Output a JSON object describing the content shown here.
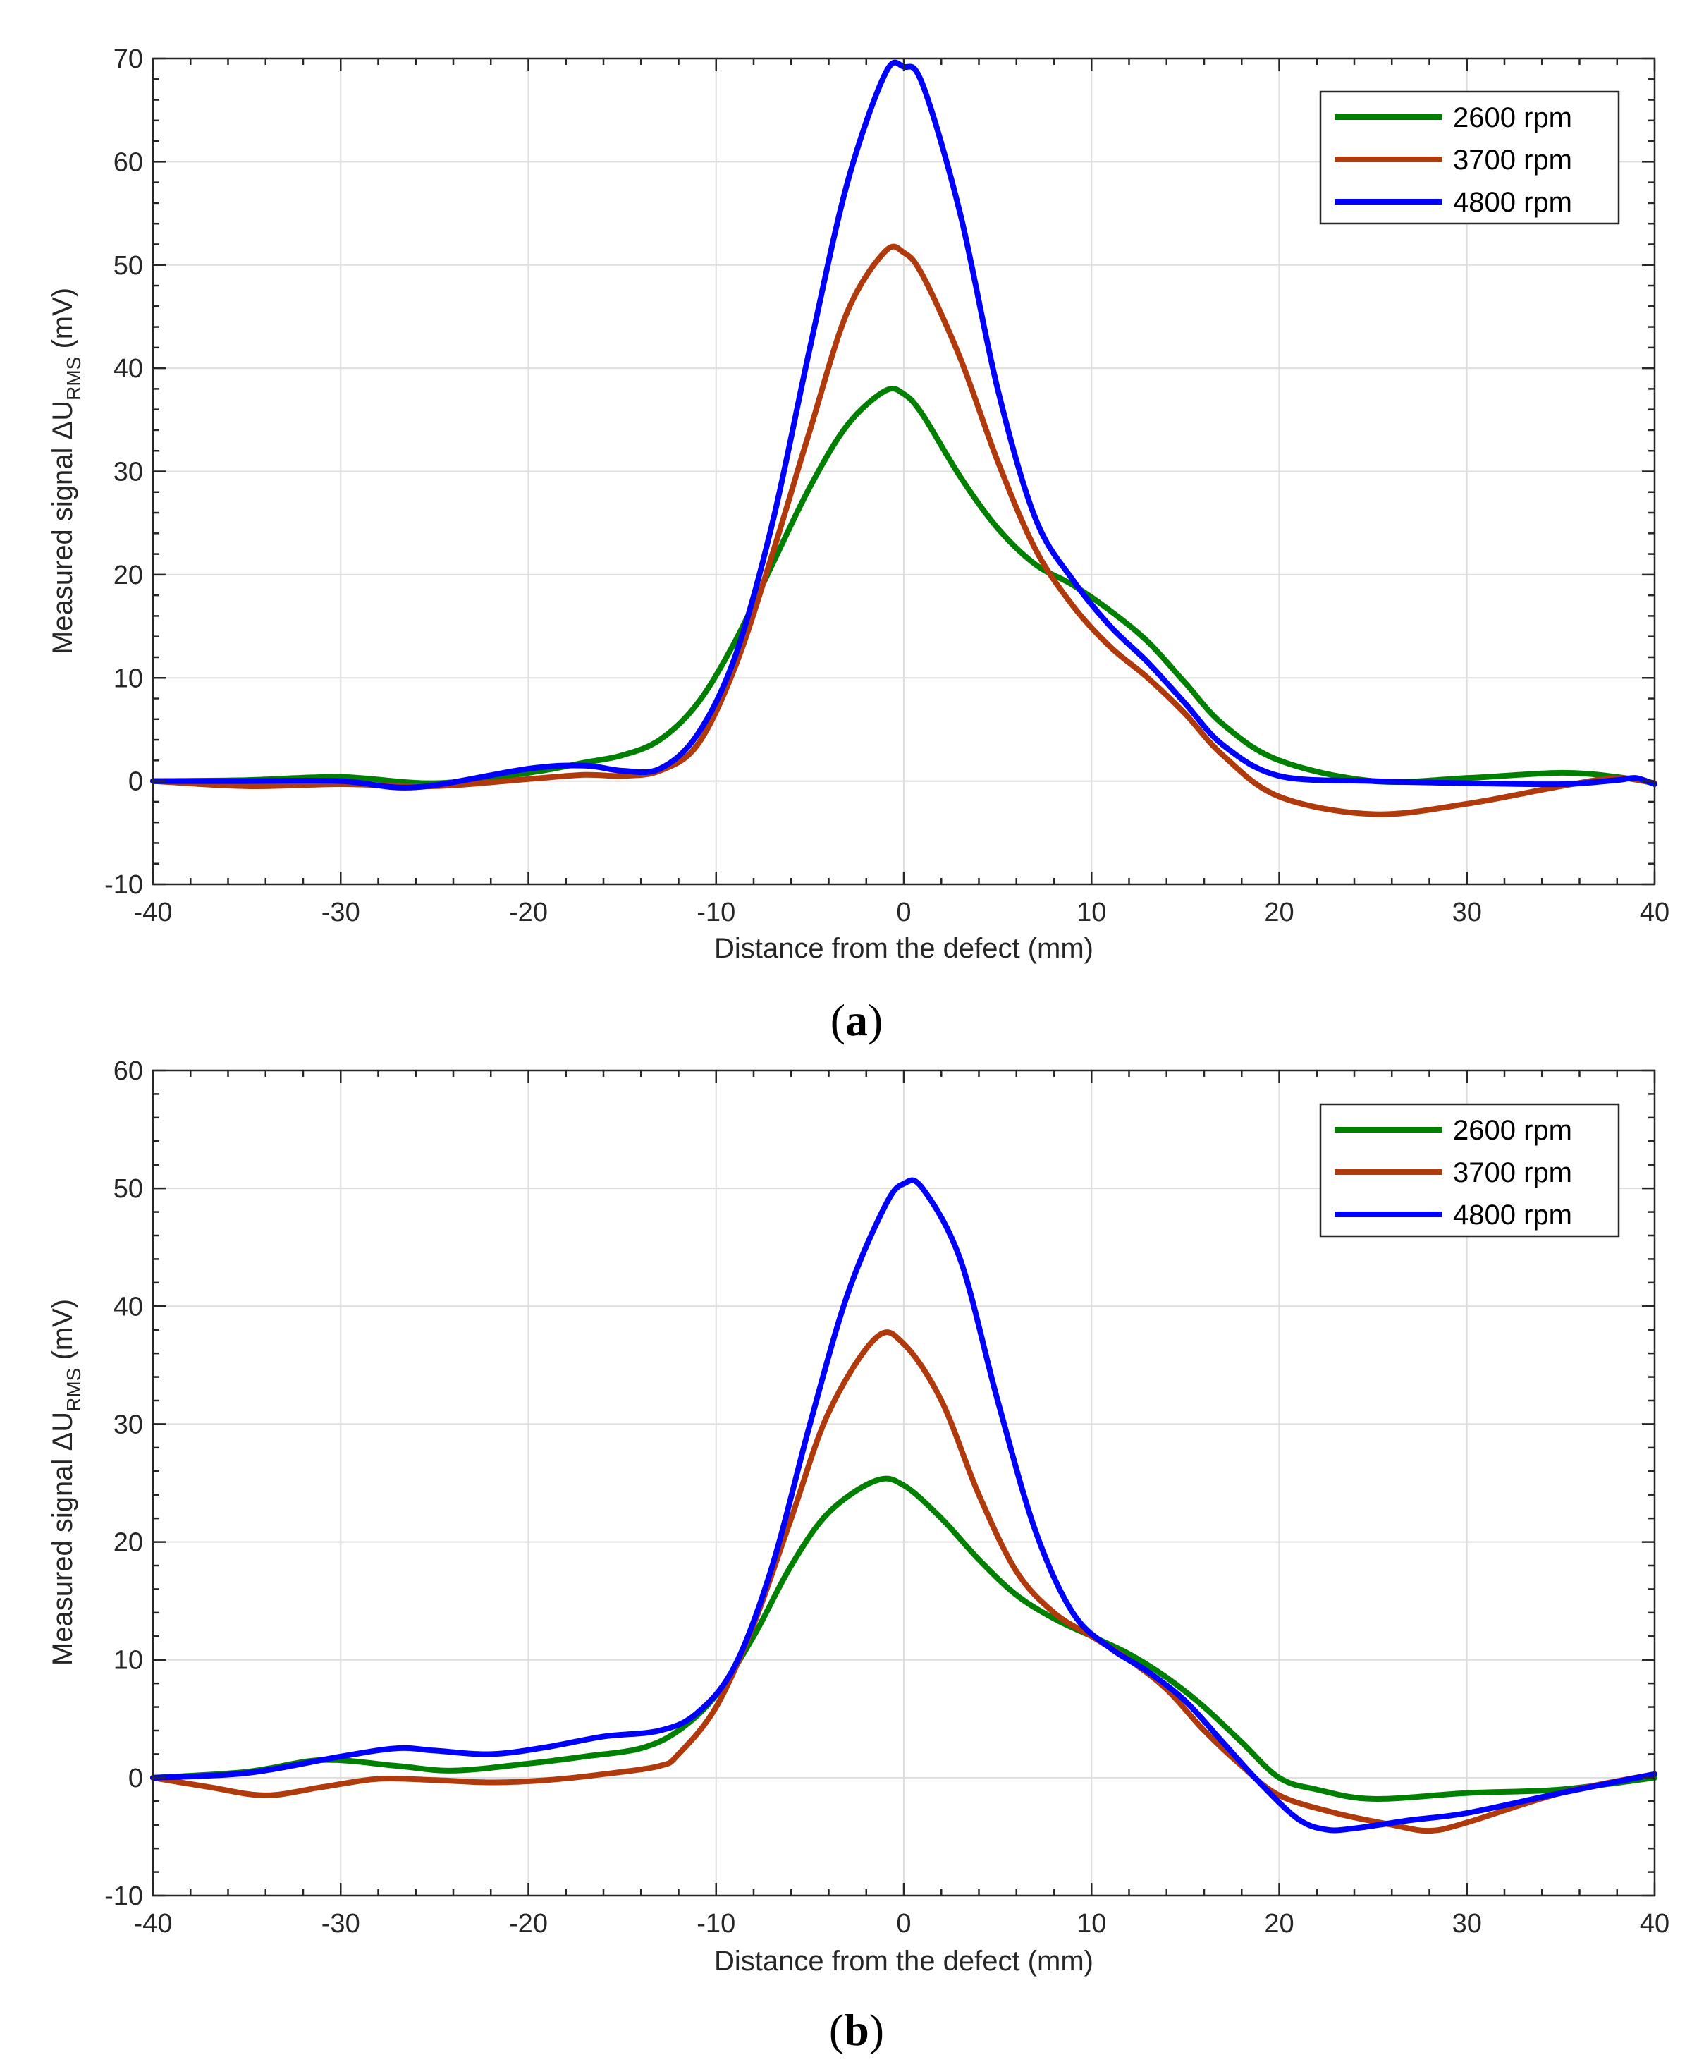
{
  "chart_data": [
    {
      "type": "line",
      "panel": "(a)",
      "panel_letter": "a",
      "xlabel": "Distance from the defect (mm)",
      "ylabel": "Measured signal ΔU",
      "ylabel_sub": "RMS",
      "ylabel_unit": " (mV)",
      "xlim": [
        -40,
        40
      ],
      "ylim": [
        -10,
        70
      ],
      "xticks": [
        -40,
        -30,
        -20,
        -10,
        0,
        10,
        20,
        30,
        40
      ],
      "yticks": [
        -10,
        0,
        10,
        20,
        30,
        40,
        50,
        60,
        70
      ],
      "grid": true,
      "legend_position": "top-right",
      "series": [
        {
          "name": "2600 rpm",
          "color": "#008000",
          "x": [
            -40,
            -35,
            -30,
            -25,
            -20,
            -17,
            -15,
            -13,
            -11,
            -9,
            -7,
            -5,
            -3,
            -1,
            0,
            1,
            3,
            5,
            7,
            9,
            11,
            13,
            15,
            17,
            20,
            25,
            30,
            35,
            38,
            40
          ],
          "y": [
            0,
            0.1,
            0.4,
            -0.2,
            0.8,
            1.8,
            2.5,
            4,
            7.5,
            13.5,
            21,
            28.5,
            34.5,
            37.8,
            37.5,
            35.5,
            29.5,
            24.5,
            21,
            19,
            16.5,
            13.5,
            9.5,
            5.5,
            2,
            0,
            0.3,
            0.8,
            0.4,
            -0.2
          ]
        },
        {
          "name": "3700 rpm",
          "color": "#B03A0C",
          "x": [
            -40,
            -35,
            -30,
            -25,
            -20,
            -17,
            -15,
            -13,
            -11,
            -9,
            -7,
            -5,
            -3,
            -1,
            0,
            1,
            3,
            5,
            7,
            9,
            11,
            13,
            15,
            17,
            20,
            25,
            30,
            35,
            38,
            40
          ],
          "y": [
            0,
            -0.5,
            -0.3,
            -0.5,
            0.2,
            0.6,
            0.5,
            1,
            3.5,
            11,
            22,
            34,
            45.5,
            51.3,
            51.2,
            49,
            41,
            31,
            22.5,
            17,
            13,
            10,
            6.5,
            2.5,
            -1.5,
            -3.2,
            -2.2,
            -0.5,
            0.3,
            -0.2
          ]
        },
        {
          "name": "4800 rpm",
          "color": "#0000FF",
          "x": [
            -40,
            -35,
            -30,
            -26,
            -20,
            -17,
            -15,
            -13,
            -11,
            -9,
            -7,
            -5,
            -3,
            -1,
            0,
            1,
            3,
            5,
            7,
            9,
            11,
            13,
            15,
            17,
            20,
            25,
            30,
            35,
            38,
            39,
            40
          ],
          "y": [
            0,
            0,
            0,
            -0.6,
            1.2,
            1.5,
            1,
            1.2,
            4.5,
            12,
            25,
            42,
            58,
            68.5,
            69.2,
            67.5,
            55,
            38,
            25.5,
            19.5,
            15,
            11.5,
            7.5,
            3.5,
            0.5,
            0,
            -0.2,
            -0.3,
            0.1,
            0.3,
            -0.3
          ]
        }
      ]
    },
    {
      "type": "line",
      "panel": "(b)",
      "panel_letter": "b",
      "xlabel": "Distance from the defect (mm)",
      "ylabel": "Measured signal ΔU",
      "ylabel_sub": "RMS",
      "ylabel_unit": " (mV)",
      "xlim": [
        -40,
        40
      ],
      "ylim": [
        -10,
        60
      ],
      "xticks": [
        -40,
        -30,
        -20,
        -10,
        0,
        10,
        20,
        30,
        40
      ],
      "yticks": [
        -10,
        0,
        10,
        20,
        30,
        40,
        50,
        60
      ],
      "grid": true,
      "legend_position": "top-right",
      "series": [
        {
          "name": "2600 rpm",
          "color": "#008000",
          "x": [
            -40,
            -35,
            -31,
            -27,
            -24,
            -20,
            -17,
            -14,
            -12,
            -10,
            -8,
            -6,
            -4,
            -1.5,
            0,
            2,
            4,
            6,
            8,
            10,
            12,
            14,
            16,
            18,
            20,
            22,
            25,
            30,
            35,
            40
          ],
          "y": [
            0,
            0.5,
            1.5,
            1,
            0.6,
            1.2,
            1.8,
            2.5,
            4,
            7,
            12,
            18,
            22.5,
            25.2,
            24.8,
            22,
            18.5,
            15.5,
            13.5,
            12,
            10.5,
            8.5,
            6,
            3,
            0,
            -1,
            -1.8,
            -1.3,
            -1,
            0
          ]
        },
        {
          "name": "3700 rpm",
          "color": "#B03A0C",
          "x": [
            -40,
            -37,
            -34,
            -31,
            -28,
            -25,
            -22,
            -19,
            -16,
            -13,
            -12,
            -10,
            -8,
            -6,
            -4,
            -1.5,
            0,
            2,
            4,
            6,
            8,
            10,
            12,
            14,
            16,
            18,
            20,
            23,
            26,
            28,
            30,
            35,
            40
          ],
          "y": [
            0,
            -0.8,
            -1.5,
            -0.8,
            -0.1,
            -0.2,
            -0.4,
            -0.2,
            0.3,
            1,
            2,
            6,
            13,
            22,
            31,
            37.3,
            36.8,
            32,
            24,
            17.5,
            14,
            12,
            10,
            7.5,
            4,
            1,
            -1.5,
            -3,
            -4,
            -4.5,
            -3.8,
            -1.3,
            0.3
          ]
        },
        {
          "name": "4800 rpm",
          "color": "#0000FF",
          "x": [
            -40,
            -35,
            -30,
            -27,
            -25,
            -22,
            -19,
            -16,
            -13,
            -11,
            -9,
            -7,
            -5,
            -3,
            -1,
            0,
            1,
            3,
            5,
            7,
            9,
            11,
            13,
            15,
            17,
            19,
            21,
            22.5,
            24,
            27,
            30,
            35,
            40
          ],
          "y": [
            0,
            0.4,
            1.8,
            2.5,
            2.3,
            2,
            2.6,
            3.5,
            4,
            5.5,
            9.5,
            18,
            30,
            41,
            48.5,
            50.4,
            50,
            44,
            32,
            21,
            14,
            11,
            9,
            6.5,
            3,
            -0.5,
            -3.5,
            -4.4,
            -4.3,
            -3.6,
            -3,
            -1.3,
            0.3
          ]
        }
      ]
    }
  ]
}
